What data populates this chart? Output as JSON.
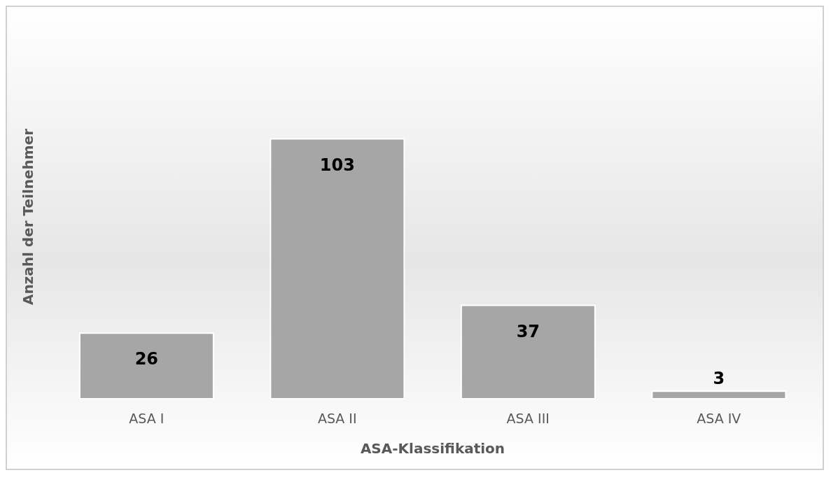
{
  "chart_data": {
    "type": "bar",
    "xlabel": "ASA-Klassifikation",
    "ylabel": "Anzahl der Teilnehmer",
    "categories": [
      "ASA I",
      "ASA II",
      "ASA III",
      "ASA IV"
    ],
    "values": [
      26,
      103,
      37,
      3
    ],
    "color": "#a6a6a6",
    "data_labels": true
  }
}
